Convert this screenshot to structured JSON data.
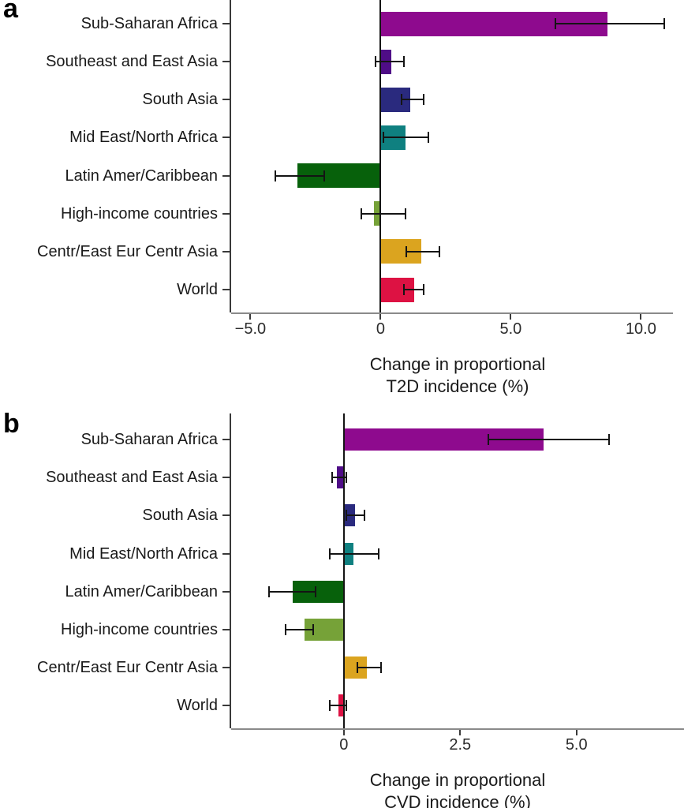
{
  "figure": {
    "panel_a_letter": "a",
    "panel_b_letter": "b",
    "background": "#ffffff",
    "text_color": "#1a1a1a"
  },
  "chart_data": [
    {
      "type": "bar",
      "panel": "a",
      "orientation": "horizontal",
      "title": "",
      "xlabel": "Change in proportional T2D incidence (%)",
      "xlabel_lines": [
        "Change in proportional",
        "T2D incidence (%)"
      ],
      "ylabel": "",
      "grid": false,
      "legend": false,
      "error_bars": true,
      "xlim": [
        -5.74,
        11.23
      ],
      "xticks": [
        {
          "value": -5,
          "label": "−5.0"
        },
        {
          "value": 0,
          "label": "0"
        },
        {
          "value": 5,
          "label": "5.0"
        },
        {
          "value": 10,
          "label": "10.0"
        }
      ],
      "categories": [
        "Sub-Saharan Africa",
        "Southeast and East Asia",
        "South Asia",
        "Mid East/North Africa",
        "Latin Amer/Caribbean",
        "High-income countries",
        "Centr/East Eur Centr Asia",
        "World"
      ],
      "values": [
        8.7,
        0.4,
        1.15,
        0.95,
        -3.2,
        -0.25,
        1.55,
        1.3
      ],
      "ci_low": [
        6.7,
        -0.2,
        0.8,
        0.1,
        -4.05,
        -0.75,
        1.0,
        0.9
      ],
      "ci_high": [
        10.9,
        0.9,
        1.65,
        1.85,
        -2.15,
        0.95,
        2.25,
        1.65
      ],
      "colors": [
        "#8E0A8E",
        "#4F0D87",
        "#2A2A7E",
        "#0F8080",
        "#07610B",
        "#76A238",
        "#DBA41F",
        "#DD1243"
      ]
    },
    {
      "type": "bar",
      "panel": "b",
      "orientation": "horizontal",
      "title": "",
      "xlabel": "Change in proportional CVD incidence (%)",
      "xlabel_lines": [
        "Change in proportional",
        "CVD incidence (%)"
      ],
      "ylabel": "",
      "grid": false,
      "legend": false,
      "error_bars": true,
      "xlim": [
        -2.42,
        7.31
      ],
      "xticks": [
        {
          "value": 0,
          "label": "0"
        },
        {
          "value": 2.5,
          "label": "2.5"
        },
        {
          "value": 5,
          "label": "5.0"
        }
      ],
      "categories": [
        "Sub-Saharan Africa",
        "Southeast and East Asia",
        "South Asia",
        "Mid East/North Africa",
        "Latin Amer/Caribbean",
        "High-income countries",
        "Centr/East Eur Centr Asia",
        "World"
      ],
      "values": [
        4.3,
        -0.15,
        0.25,
        0.2,
        -1.1,
        -0.85,
        0.5,
        -0.12
      ],
      "ci_low": [
        3.1,
        -0.25,
        0.05,
        -0.3,
        -1.6,
        -1.25,
        0.3,
        -0.3
      ],
      "ci_high": [
        5.7,
        0.05,
        0.45,
        0.75,
        -0.6,
        -0.65,
        0.8,
        0.05
      ],
      "colors": [
        "#8E0A8E",
        "#4F0D87",
        "#2A2A7E",
        "#0F8080",
        "#07610B",
        "#76A238",
        "#DBA41F",
        "#DD1243"
      ]
    }
  ]
}
